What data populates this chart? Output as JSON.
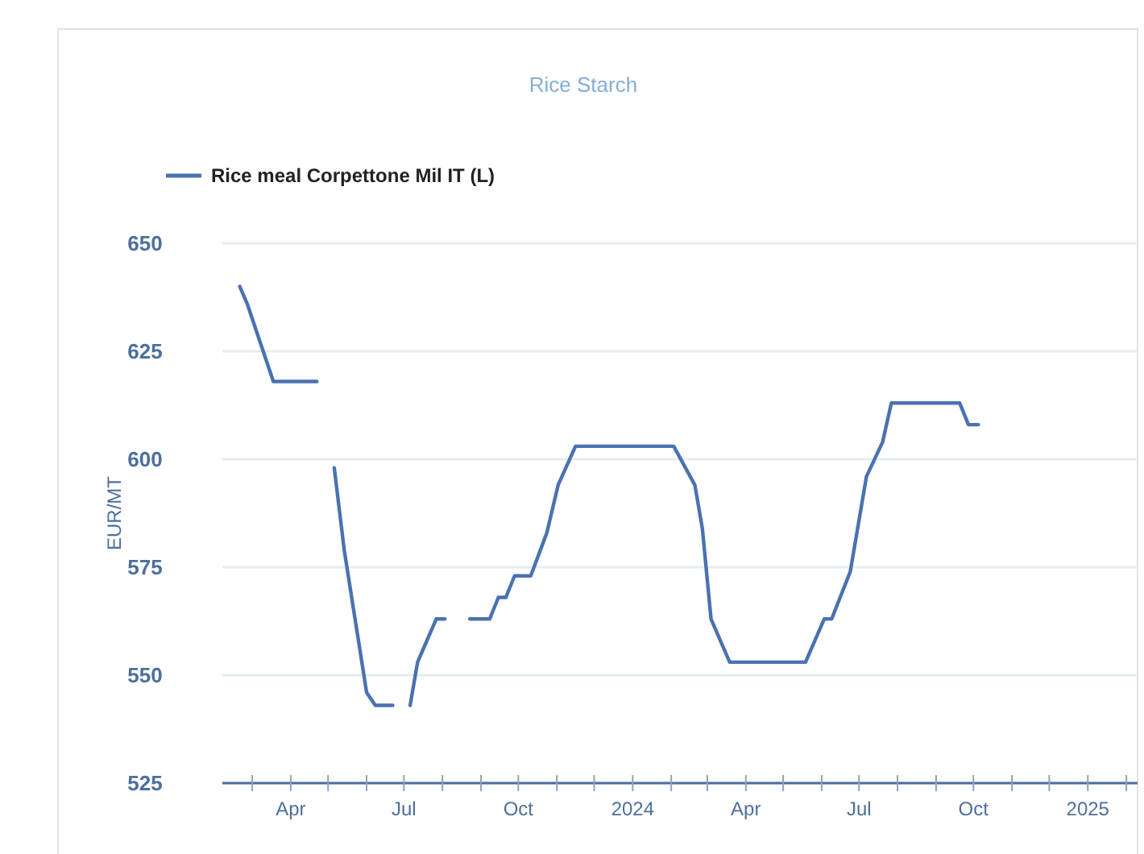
{
  "chart_data": {
    "type": "line",
    "title": "Rice Starch",
    "ylabel": "EUR/MT",
    "legend": "top left",
    "grid": "y",
    "marker": "none",
    "line_style": "solid",
    "xlim": [
      "2023-02-05",
      "2025-02-10"
    ],
    "ylim": [
      525,
      650
    ],
    "yticks": [
      525,
      550,
      575,
      600,
      625,
      650
    ],
    "xticks": [
      {
        "value": "2023-03-01",
        "label": null
      },
      {
        "value": "2023-04-01",
        "label": "Apr"
      },
      {
        "value": "2023-05-01",
        "label": null
      },
      {
        "value": "2023-06-01",
        "label": null
      },
      {
        "value": "2023-07-01",
        "label": "Jul"
      },
      {
        "value": "2023-08-01",
        "label": null
      },
      {
        "value": "2023-09-01",
        "label": null
      },
      {
        "value": "2023-10-01",
        "label": "Oct"
      },
      {
        "value": "2023-11-01",
        "label": null
      },
      {
        "value": "2023-12-01",
        "label": null
      },
      {
        "value": "2024-01-01",
        "label": "2024"
      },
      {
        "value": "2024-02-01",
        "label": null
      },
      {
        "value": "2024-03-01",
        "label": null
      },
      {
        "value": "2024-04-01",
        "label": "Apr"
      },
      {
        "value": "2024-05-01",
        "label": null
      },
      {
        "value": "2024-06-01",
        "label": null
      },
      {
        "value": "2024-07-01",
        "label": "Jul"
      },
      {
        "value": "2024-08-01",
        "label": null
      },
      {
        "value": "2024-09-01",
        "label": null
      },
      {
        "value": "2024-10-01",
        "label": "Oct"
      },
      {
        "value": "2024-11-01",
        "label": null
      },
      {
        "value": "2024-12-01",
        "label": null
      },
      {
        "value": "2025-01-01",
        "label": "2025"
      },
      {
        "value": "2025-02-01",
        "label": null
      }
    ],
    "series": [
      {
        "name": "Rice meal Corpettone Mil IT (L)",
        "color": "#4a72b0",
        "x": [
          "2023-02-19",
          "2023-02-25",
          "2023-03-18",
          "2023-04-22",
          "2023-04-29",
          "2023-05-06",
          "2023-05-14",
          "2023-06-01",
          "2023-06-08",
          "2023-06-22",
          "2023-06-29",
          "2023-07-06",
          "2023-07-12",
          "2023-07-27",
          "2023-08-03",
          "2023-08-13",
          "2023-08-23",
          "2023-09-08",
          "2023-09-15",
          "2023-09-21",
          "2023-09-28",
          "2023-10-11",
          "2023-10-24",
          "2023-11-02",
          "2023-11-16",
          "2024-02-03",
          "2024-02-20",
          "2024-02-26",
          "2024-03-04",
          "2024-03-19",
          "2024-05-19",
          "2024-06-03",
          "2024-06-09",
          "2024-06-24",
          "2024-07-07",
          "2024-07-20",
          "2024-07-27",
          "2024-09-20",
          "2024-09-27",
          "2024-10-05"
        ],
        "values": [
          640,
          636,
          618,
          618,
          null,
          598,
          579,
          546,
          543,
          543,
          null,
          543,
          553,
          563,
          563,
          null,
          563,
          563,
          568,
          568,
          573,
          573,
          583,
          594,
          603,
          603,
          594,
          584,
          563,
          553,
          553,
          563,
          563,
          574,
          596,
          604,
          613,
          613,
          608,
          608
        ]
      }
    ]
  }
}
